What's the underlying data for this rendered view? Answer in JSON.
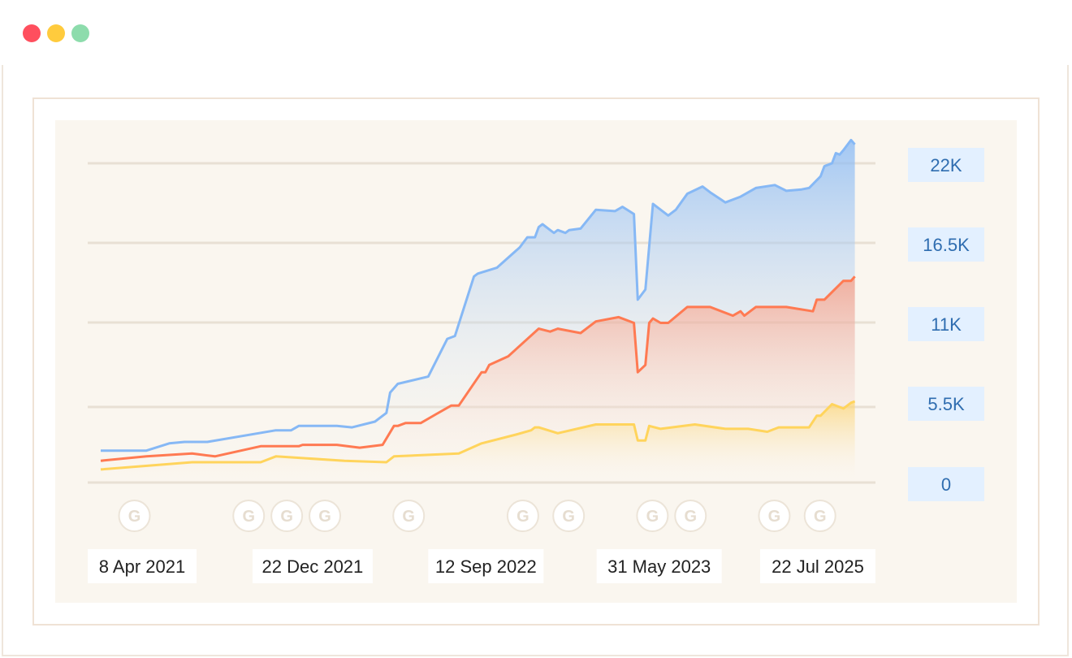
{
  "window": {
    "dots": [
      {
        "name": "close-dot",
        "color": "#ff4f5e"
      },
      {
        "name": "minimize-dot",
        "color": "#ffcb3d"
      },
      {
        "name": "maximize-dot",
        "color": "#8ddcac"
      }
    ]
  },
  "chart_data": {
    "type": "area",
    "title": "",
    "xlabel": "",
    "ylabel": "",
    "ylim": [
      0,
      24000
    ],
    "y_axis_position": "right",
    "grid": true,
    "y_ticks": [
      {
        "value": 0,
        "label": "0"
      },
      {
        "value": 5500,
        "label": "5.5K"
      },
      {
        "value": 11000,
        "label": "11K"
      },
      {
        "value": 16500,
        "label": "16.5K"
      },
      {
        "value": 22000,
        "label": "22K"
      }
    ],
    "x_tick_labels": [
      "8 Apr 2021",
      "22 Dec 2021",
      "12 Sep 2022",
      "31 May 2023",
      "22 Jul 2025"
    ],
    "x_tick_positions": [
      0.05,
      0.27,
      0.49,
      0.71,
      0.95
    ],
    "markers": {
      "icon": "google-update-icon",
      "label": "G",
      "positions": [
        0.04,
        0.19,
        0.24,
        0.29,
        0.4,
        0.55,
        0.61,
        0.72,
        0.77,
        0.88,
        0.94
      ]
    },
    "colors": {
      "series1_line": "#86b8f5",
      "series2_line": "#ff7a52",
      "series3_line": "#ffd45c",
      "grid": "#e8e0d4",
      "tick_bg": "#e3f0ff",
      "plot_bg": "#faf6ef"
    },
    "series": [
      {
        "color": "#86b8f5",
        "points": [
          [
            0.0,
            2200
          ],
          [
            0.06,
            2200
          ],
          [
            0.09,
            2700
          ],
          [
            0.11,
            2800
          ],
          [
            0.14,
            2800
          ],
          [
            0.23,
            3600
          ],
          [
            0.25,
            3600
          ],
          [
            0.26,
            3900
          ],
          [
            0.29,
            3900
          ],
          [
            0.31,
            3900
          ],
          [
            0.33,
            3800
          ],
          [
            0.36,
            4200
          ],
          [
            0.375,
            4800
          ],
          [
            0.38,
            6200
          ],
          [
            0.39,
            6800
          ],
          [
            0.43,
            7300
          ],
          [
            0.455,
            9900
          ],
          [
            0.465,
            10100
          ],
          [
            0.49,
            14200
          ],
          [
            0.495,
            14400
          ],
          [
            0.52,
            14800
          ],
          [
            0.55,
            16200
          ],
          [
            0.56,
            16900
          ],
          [
            0.57,
            16900
          ],
          [
            0.575,
            17600
          ],
          [
            0.58,
            17800
          ],
          [
            0.59,
            17400
          ],
          [
            0.595,
            17200
          ],
          [
            0.6,
            17400
          ],
          [
            0.61,
            17200
          ],
          [
            0.615,
            17400
          ],
          [
            0.63,
            17500
          ],
          [
            0.65,
            18800
          ],
          [
            0.675,
            18700
          ],
          [
            0.685,
            19000
          ],
          [
            0.7,
            18500
          ],
          [
            0.705,
            12600
          ],
          [
            0.715,
            13300
          ],
          [
            0.725,
            19200
          ],
          [
            0.745,
            18400
          ],
          [
            0.755,
            18800
          ],
          [
            0.77,
            19900
          ],
          [
            0.79,
            20400
          ],
          [
            0.8,
            20000
          ],
          [
            0.82,
            19300
          ],
          [
            0.84,
            19700
          ],
          [
            0.86,
            20300
          ],
          [
            0.885,
            20500
          ],
          [
            0.9,
            20100
          ],
          [
            0.92,
            20200
          ],
          [
            0.93,
            20300
          ],
          [
            0.945,
            21100
          ],
          [
            0.95,
            21800
          ],
          [
            0.96,
            22000
          ],
          [
            0.965,
            22700
          ],
          [
            0.97,
            22600
          ],
          [
            0.975,
            22900
          ],
          [
            0.985,
            23600
          ],
          [
            0.99,
            23300
          ]
        ]
      },
      {
        "color": "#ff7a52",
        "points": [
          [
            0.0,
            1500
          ],
          [
            0.06,
            1800
          ],
          [
            0.12,
            2000
          ],
          [
            0.15,
            1800
          ],
          [
            0.21,
            2500
          ],
          [
            0.26,
            2500
          ],
          [
            0.265,
            2600
          ],
          [
            0.31,
            2600
          ],
          [
            0.34,
            2400
          ],
          [
            0.37,
            2600
          ],
          [
            0.385,
            3900
          ],
          [
            0.39,
            3900
          ],
          [
            0.4,
            4100
          ],
          [
            0.42,
            4100
          ],
          [
            0.44,
            4700
          ],
          [
            0.46,
            5300
          ],
          [
            0.47,
            5300
          ],
          [
            0.5,
            7600
          ],
          [
            0.505,
            7600
          ],
          [
            0.51,
            8100
          ],
          [
            0.535,
            8700
          ],
          [
            0.575,
            10600
          ],
          [
            0.59,
            10400
          ],
          [
            0.6,
            10600
          ],
          [
            0.63,
            10300
          ],
          [
            0.65,
            11100
          ],
          [
            0.68,
            11400
          ],
          [
            0.7,
            11000
          ],
          [
            0.705,
            7600
          ],
          [
            0.715,
            8100
          ],
          [
            0.72,
            11000
          ],
          [
            0.725,
            11300
          ],
          [
            0.735,
            11000
          ],
          [
            0.745,
            11000
          ],
          [
            0.77,
            12100
          ],
          [
            0.8,
            12100
          ],
          [
            0.83,
            11500
          ],
          [
            0.84,
            11800
          ],
          [
            0.845,
            11500
          ],
          [
            0.86,
            12100
          ],
          [
            0.9,
            12100
          ],
          [
            0.935,
            11800
          ],
          [
            0.94,
            12600
          ],
          [
            0.95,
            12600
          ],
          [
            0.975,
            13900
          ],
          [
            0.985,
            13900
          ],
          [
            0.99,
            14200
          ]
        ]
      },
      {
        "color": "#ffd45c",
        "points": [
          [
            0.0,
            900
          ],
          [
            0.12,
            1400
          ],
          [
            0.21,
            1400
          ],
          [
            0.23,
            1800
          ],
          [
            0.32,
            1500
          ],
          [
            0.375,
            1400
          ],
          [
            0.385,
            1800
          ],
          [
            0.47,
            2000
          ],
          [
            0.5,
            2700
          ],
          [
            0.545,
            3300
          ],
          [
            0.565,
            3600
          ],
          [
            0.57,
            3800
          ],
          [
            0.575,
            3800
          ],
          [
            0.6,
            3400
          ],
          [
            0.65,
            4000
          ],
          [
            0.7,
            4000
          ],
          [
            0.705,
            2900
          ],
          [
            0.715,
            2900
          ],
          [
            0.72,
            3900
          ],
          [
            0.735,
            3700
          ],
          [
            0.78,
            4000
          ],
          [
            0.82,
            3700
          ],
          [
            0.85,
            3700
          ],
          [
            0.875,
            3500
          ],
          [
            0.89,
            3800
          ],
          [
            0.93,
            3800
          ],
          [
            0.94,
            4600
          ],
          [
            0.945,
            4600
          ],
          [
            0.96,
            5400
          ],
          [
            0.975,
            5100
          ],
          [
            0.985,
            5500
          ],
          [
            0.99,
            5600
          ]
        ]
      }
    ]
  }
}
